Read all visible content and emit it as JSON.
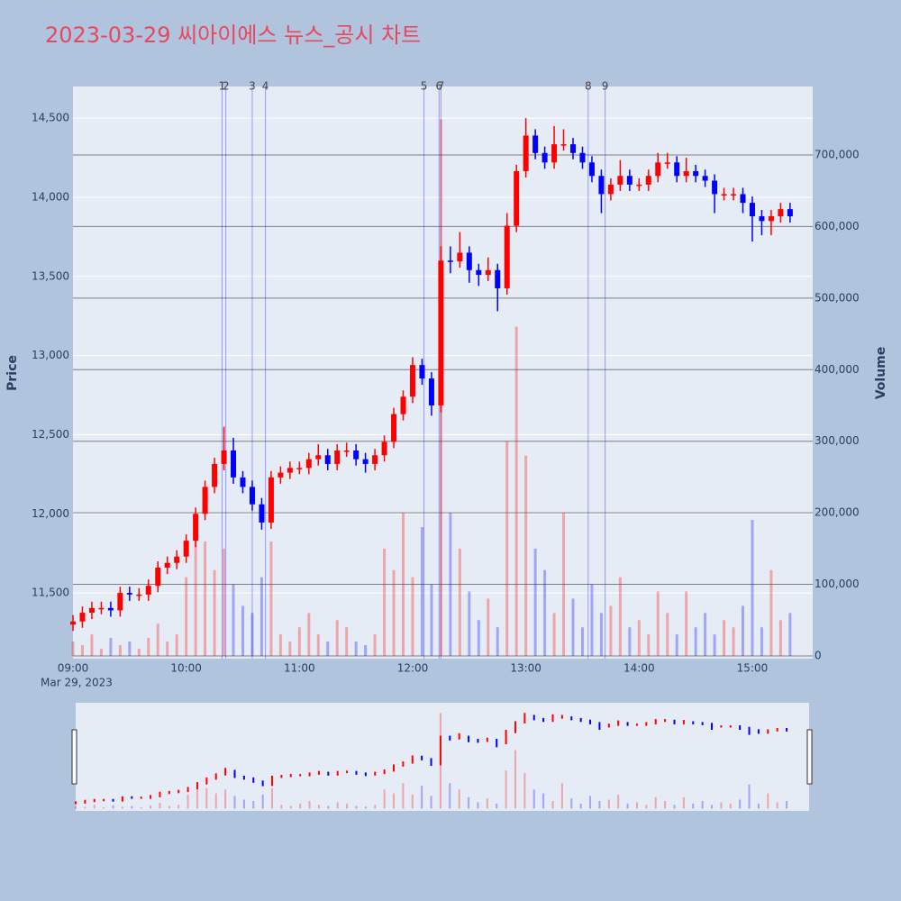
{
  "chart_data": {
    "type": "candlestick",
    "title": "2023-03-29 씨아이에스 뉴스_공시 차트",
    "y_title": "Price",
    "y2_title": "Volume",
    "x_date_label": "Mar 29, 2023",
    "increasing_color": "#ff0000",
    "decreasing_color": "#0000ff",
    "event_color": "#0000ff",
    "grid": true,
    "rangeslider": true,
    "xlim": [
      "2023-03-29 09:00",
      "2023-03-29 15:32"
    ],
    "xticks": [
      {
        "value": "2023-03-29 09:00",
        "label": "09:00"
      },
      {
        "value": "2023-03-29 10:00",
        "label": "10:00"
      },
      {
        "value": "2023-03-29 11:00",
        "label": "11:00"
      },
      {
        "value": "2023-03-29 12:00",
        "label": "12:00"
      },
      {
        "value": "2023-03-29 13:00",
        "label": "13:00"
      },
      {
        "value": "2023-03-29 14:00",
        "label": "14:00"
      },
      {
        "value": "2023-03-29 15:00",
        "label": "15:00"
      }
    ],
    "ylim": [
      11085,
      14700
    ],
    "yticks": [
      {
        "value": 11500,
        "label": "11,500"
      },
      {
        "value": 12000,
        "label": "12,000"
      },
      {
        "value": 12500,
        "label": "12,500"
      },
      {
        "value": 13000,
        "label": "13,000"
      },
      {
        "value": 13500,
        "label": "13,500"
      },
      {
        "value": 14000,
        "label": "14,000"
      },
      {
        "value": 14500,
        "label": "14,500"
      }
    ],
    "y2lim": [
      -3800,
      795700
    ],
    "y2ticks": [
      0,
      {
        "value": 100000,
        "label": "100,000"
      },
      {
        "value": 200000,
        "label": "200,000"
      },
      {
        "value": 300000,
        "label": "300,000"
      },
      {
        "value": 400000,
        "label": "400,000"
      },
      {
        "value": 500000,
        "label": "500,000"
      },
      {
        "value": 600000,
        "label": "600,000"
      },
      {
        "value": 700000,
        "label": "700,000"
      }
    ],
    "events": [
      {
        "x": "2023-03-29 10:19",
        "label": "1"
      },
      {
        "x": "2023-03-29 10:21",
        "label": "2"
      },
      {
        "x": "2023-03-29 10:35",
        "label": "3"
      },
      {
        "x": "2023-03-29 10:42",
        "label": "4"
      },
      {
        "x": "2023-03-29 12:06",
        "label": "5"
      },
      {
        "x": "2023-03-29 12:14",
        "label": "6"
      },
      {
        "x": "2023-03-29 12:15",
        "label": "7"
      },
      {
        "x": "2023-03-29 13:33",
        "label": "8"
      },
      {
        "x": "2023-03-29 13:42",
        "label": "9"
      }
    ],
    "x": [
      "2023-03-29 09:00",
      "2023-03-29 09:05",
      "2023-03-29 09:10",
      "2023-03-29 09:15",
      "2023-03-29 09:20",
      "2023-03-29 09:25",
      "2023-03-29 09:30",
      "2023-03-29 09:35",
      "2023-03-29 09:40",
      "2023-03-29 09:45",
      "2023-03-29 09:50",
      "2023-03-29 09:55",
      "2023-03-29 10:00",
      "2023-03-29 10:05",
      "2023-03-29 10:10",
      "2023-03-29 10:15",
      "2023-03-29 10:20",
      "2023-03-29 10:25",
      "2023-03-29 10:30",
      "2023-03-29 10:35",
      "2023-03-29 10:40",
      "2023-03-29 10:45",
      "2023-03-29 10:50",
      "2023-03-29 10:55",
      "2023-03-29 11:00",
      "2023-03-29 11:05",
      "2023-03-29 11:10",
      "2023-03-29 11:15",
      "2023-03-29 11:20",
      "2023-03-29 11:25",
      "2023-03-29 11:30",
      "2023-03-29 11:35",
      "2023-03-29 11:40",
      "2023-03-29 11:45",
      "2023-03-29 11:50",
      "2023-03-29 11:55",
      "2023-03-29 12:00",
      "2023-03-29 12:05",
      "2023-03-29 12:10",
      "2023-03-29 12:15",
      "2023-03-29 12:20",
      "2023-03-29 12:25",
      "2023-03-29 12:30",
      "2023-03-29 12:35",
      "2023-03-29 12:40",
      "2023-03-29 12:45",
      "2023-03-29 12:50",
      "2023-03-29 12:55",
      "2023-03-29 13:00",
      "2023-03-29 13:05",
      "2023-03-29 13:10",
      "2023-03-29 13:15",
      "2023-03-29 13:20",
      "2023-03-29 13:25",
      "2023-03-29 13:30",
      "2023-03-29 13:35",
      "2023-03-29 13:40",
      "2023-03-29 13:45",
      "2023-03-29 13:50",
      "2023-03-29 13:55",
      "2023-03-29 14:00",
      "2023-03-29 14:05",
      "2023-03-29 14:10",
      "2023-03-29 14:15",
      "2023-03-29 14:20",
      "2023-03-29 14:25",
      "2023-03-29 14:30",
      "2023-03-29 14:35",
      "2023-03-29 14:40",
      "2023-03-29 14:45",
      "2023-03-29 14:50",
      "2023-03-29 14:55",
      "2023-03-29 15:00",
      "2023-03-29 15:05",
      "2023-03-29 15:10",
      "2023-03-29 15:15",
      "2023-03-29 15:20"
    ],
    "open": [
      11300,
      11320,
      11375,
      11405,
      11405,
      11390,
      11500,
      11490,
      11490,
      11545,
      11660,
      11690,
      11730,
      11830,
      12000,
      12170,
      12315,
      12400,
      12230,
      12170,
      12060,
      11945,
      12230,
      12260,
      12290,
      12290,
      12345,
      12370,
      12315,
      12400,
      12400,
      12345,
      12315,
      12370,
      12455,
      12630,
      12740,
      12940,
      12855,
      12685,
      13600,
      13595,
      13650,
      13540,
      13510,
      13540,
      13425,
      13820,
      14165,
      14390,
      14280,
      14220,
      14335,
      14335,
      14280,
      14220,
      14135,
      14020,
      14080,
      14135,
      14080,
      14080,
      14135,
      14220,
      14220,
      14135,
      14165,
      14135,
      14105,
      14020,
      14020,
      14020,
      13965,
      13880,
      13850,
      13880,
      13925
    ],
    "high": [
      11360,
      11415,
      11445,
      11445,
      11445,
      11540,
      11540,
      11530,
      11585,
      11700,
      11730,
      11770,
      11870,
      12040,
      12210,
      12355,
      12550,
      12480,
      12270,
      12210,
      12100,
      12270,
      12300,
      12330,
      12330,
      12385,
      12440,
      12410,
      12440,
      12450,
      12440,
      12385,
      12410,
      12495,
      12670,
      12780,
      12990,
      12980,
      12895,
      13690,
      13690,
      13780,
      13690,
      13580,
      13620,
      13580,
      13900,
      14205,
      14500,
      14430,
      14320,
      14450,
      14430,
      14375,
      14320,
      14260,
      14175,
      14120,
      14235,
      14175,
      14120,
      14175,
      14280,
      14280,
      14260,
      14250,
      14205,
      14175,
      14145,
      14060,
      14060,
      14060,
      14005,
      13920,
      13920,
      13965,
      13965
    ],
    "low": [
      11260,
      11280,
      11335,
      11365,
      11350,
      11350,
      11450,
      11450,
      11450,
      11505,
      11620,
      11650,
      11690,
      11790,
      11960,
      12130,
      12275,
      12190,
      12130,
      12020,
      11900,
      11905,
      12190,
      12220,
      12250,
      12250,
      12305,
      12275,
      12275,
      12360,
      12305,
      12260,
      12275,
      12330,
      12415,
      12590,
      12700,
      12815,
      12620,
      12640,
      13520,
      13555,
      13460,
      13440,
      13470,
      13280,
      13385,
      13780,
      14125,
      14240,
      14180,
      14180,
      14295,
      14240,
      14180,
      14095,
      13900,
      13980,
      14040,
      14040,
      14040,
      14040,
      14095,
      14180,
      14095,
      14095,
      14095,
      14065,
      13900,
      13980,
      13980,
      13900,
      13720,
      13760,
      13760,
      13840,
      13840
    ],
    "close": [
      11320,
      11375,
      11405,
      11405,
      11390,
      11500,
      11490,
      11490,
      11545,
      11660,
      11690,
      11730,
      11830,
      12000,
      12170,
      12315,
      12400,
      12230,
      12170,
      12060,
      11945,
      12230,
      12260,
      12290,
      12290,
      12345,
      12370,
      12315,
      12400,
      12400,
      12345,
      12315,
      12370,
      12455,
      12630,
      12740,
      12940,
      12855,
      12685,
      13600,
      13595,
      13650,
      13540,
      13510,
      13540,
      13425,
      13820,
      14165,
      14390,
      14280,
      14220,
      14335,
      14335,
      14280,
      14220,
      14135,
      14020,
      14080,
      14135,
      14080,
      14080,
      14135,
      14220,
      14220,
      14135,
      14165,
      14135,
      14105,
      14020,
      14020,
      14020,
      13965,
      13880,
      13850,
      13880,
      13925,
      13880
    ],
    "volume": [
      20000,
      15000,
      30000,
      10000,
      25000,
      15000,
      20000,
      10000,
      25000,
      45000,
      20000,
      30000,
      110000,
      180000,
      160000,
      120000,
      150000,
      100000,
      70000,
      60000,
      110000,
      160000,
      30000,
      20000,
      40000,
      60000,
      30000,
      20000,
      50000,
      40000,
      20000,
      15000,
      30000,
      150000,
      120000,
      200000,
      110000,
      180000,
      100000,
      750000,
      200000,
      150000,
      90000,
      50000,
      80000,
      40000,
      300000,
      460000,
      280000,
      150000,
      120000,
      60000,
      200000,
      80000,
      40000,
      100000,
      60000,
      70000,
      110000,
      40000,
      50000,
      30000,
      90000,
      60000,
      30000,
      90000,
      40000,
      60000,
      30000,
      50000,
      40000,
      70000,
      190000,
      40000,
      120000,
      50000,
      60000
    ]
  }
}
